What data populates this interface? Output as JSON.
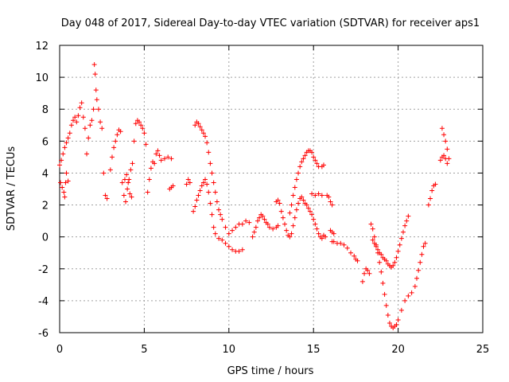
{
  "chart_data": {
    "type": "scatter",
    "title": "Day 048 of 2017, Sidereal Day-to-day VTEC variation (SDTVAR) for receiver aps1",
    "xlabel": "GPS time / hours",
    "ylabel": "SDTVAR / TECUs",
    "xlim": [
      0,
      25
    ],
    "ylim": [
      -6,
      12
    ],
    "xticks": [
      "0",
      "5",
      "10",
      "15",
      "20",
      "25"
    ],
    "yticks": [
      "-6",
      "-4",
      "-2",
      "0",
      "2",
      "4",
      "6",
      "8",
      "10",
      "12"
    ],
    "grid": true,
    "marker": "+",
    "color": "#ff0000",
    "series": [
      {
        "name": "aps1",
        "points": [
          [
            0.0,
            4.5
          ],
          [
            0.1,
            4.8
          ],
          [
            0.2,
            5.2
          ],
          [
            0.3,
            5.6
          ],
          [
            0.4,
            5.9
          ],
          [
            0.5,
            6.2
          ],
          [
            0.6,
            6.5
          ],
          [
            0.7,
            7.0
          ],
          [
            0.8,
            7.3
          ],
          [
            0.9,
            7.5
          ],
          [
            1.0,
            7.2
          ],
          [
            1.1,
            7.6
          ],
          [
            1.2,
            8.1
          ],
          [
            1.3,
            8.4
          ],
          [
            1.4,
            7.5
          ],
          [
            1.5,
            6.8
          ],
          [
            1.6,
            5.2
          ],
          [
            1.7,
            6.2
          ],
          [
            1.8,
            7.0
          ],
          [
            1.9,
            7.3
          ],
          [
            2.0,
            8.0
          ],
          [
            2.05,
            10.8
          ],
          [
            2.1,
            10.2
          ],
          [
            2.15,
            9.2
          ],
          [
            2.2,
            8.6
          ],
          [
            2.3,
            8.0
          ],
          [
            2.4,
            7.2
          ],
          [
            2.5,
            6.8
          ],
          [
            2.6,
            4.0
          ],
          [
            2.7,
            2.6
          ],
          [
            2.8,
            2.4
          ],
          [
            0.05,
            3.4
          ],
          [
            0.15,
            3.1
          ],
          [
            0.25,
            2.8
          ],
          [
            0.3,
            2.5
          ],
          [
            0.35,
            3.4
          ],
          [
            0.4,
            4.0
          ],
          [
            0.5,
            3.5
          ],
          [
            3.0,
            4.2
          ],
          [
            3.1,
            5.0
          ],
          [
            3.2,
            5.6
          ],
          [
            3.3,
            6.0
          ],
          [
            3.4,
            6.4
          ],
          [
            3.5,
            6.7
          ],
          [
            3.6,
            6.6
          ],
          [
            3.7,
            3.4
          ],
          [
            3.8,
            2.6
          ],
          [
            3.9,
            2.2
          ],
          [
            4.0,
            3.0
          ],
          [
            4.1,
            3.6
          ],
          [
            4.2,
            4.2
          ],
          [
            4.3,
            4.6
          ],
          [
            3.85,
            3.6
          ],
          [
            3.95,
            3.9
          ],
          [
            4.05,
            3.4
          ],
          [
            4.15,
            2.7
          ],
          [
            4.25,
            2.5
          ],
          [
            4.4,
            6.0
          ],
          [
            4.5,
            7.1
          ],
          [
            4.6,
            7.3
          ],
          [
            4.7,
            7.2
          ],
          [
            4.8,
            7.0
          ],
          [
            4.9,
            6.8
          ],
          [
            5.0,
            6.5
          ],
          [
            5.1,
            5.8
          ],
          [
            5.2,
            2.8
          ],
          [
            5.3,
            3.6
          ],
          [
            5.4,
            4.3
          ],
          [
            5.5,
            4.7
          ],
          [
            5.6,
            4.6
          ],
          [
            5.7,
            5.2
          ],
          [
            5.8,
            5.4
          ],
          [
            5.9,
            5.1
          ],
          [
            6.0,
            4.8
          ],
          [
            6.2,
            4.9
          ],
          [
            6.4,
            5.0
          ],
          [
            6.6,
            4.9
          ],
          [
            6.5,
            3.0
          ],
          [
            6.6,
            3.1
          ],
          [
            6.7,
            3.2
          ],
          [
            7.5,
            3.3
          ],
          [
            7.6,
            3.6
          ],
          [
            7.7,
            3.4
          ],
          [
            7.9,
            1.6
          ],
          [
            8.0,
            1.9
          ],
          [
            8.1,
            2.3
          ],
          [
            8.2,
            2.6
          ],
          [
            8.3,
            2.9
          ],
          [
            8.4,
            3.2
          ],
          [
            8.5,
            3.4
          ],
          [
            8.6,
            3.6
          ],
          [
            8.7,
            3.3
          ],
          [
            8.8,
            2.8
          ],
          [
            8.9,
            2.1
          ],
          [
            9.0,
            1.4
          ],
          [
            9.1,
            0.6
          ],
          [
            9.2,
            0.2
          ],
          [
            9.4,
            -0.1
          ],
          [
            9.6,
            -0.2
          ],
          [
            9.8,
            -0.4
          ],
          [
            10.0,
            -0.6
          ],
          [
            10.2,
            -0.8
          ],
          [
            10.4,
            -0.9
          ],
          [
            10.6,
            -0.9
          ],
          [
            10.8,
            -0.8
          ],
          [
            8.0,
            7.0
          ],
          [
            8.1,
            7.2
          ],
          [
            8.2,
            7.1
          ],
          [
            8.3,
            6.9
          ],
          [
            8.4,
            6.7
          ],
          [
            8.5,
            6.5
          ],
          [
            8.6,
            6.3
          ],
          [
            8.7,
            5.9
          ],
          [
            8.8,
            5.3
          ],
          [
            8.9,
            4.6
          ],
          [
            9.0,
            4.0
          ],
          [
            9.1,
            3.4
          ],
          [
            9.2,
            2.8
          ],
          [
            9.3,
            2.2
          ],
          [
            9.4,
            1.7
          ],
          [
            9.5,
            1.4
          ],
          [
            9.6,
            1.1
          ],
          [
            9.8,
            0.6
          ],
          [
            10.0,
            0.2
          ],
          [
            10.2,
            0.4
          ],
          [
            10.4,
            0.6
          ],
          [
            10.6,
            0.8
          ],
          [
            10.8,
            0.8
          ],
          [
            11.0,
            1.0
          ],
          [
            11.2,
            0.9
          ],
          [
            11.4,
            0.0
          ],
          [
            11.5,
            0.3
          ],
          [
            11.6,
            0.6
          ],
          [
            11.7,
            1.0
          ],
          [
            11.8,
            1.2
          ],
          [
            11.9,
            1.4
          ],
          [
            12.0,
            1.3
          ],
          [
            12.1,
            1.1
          ],
          [
            12.2,
            0.9
          ],
          [
            12.3,
            0.8
          ],
          [
            12.4,
            0.6
          ],
          [
            12.6,
            0.5
          ],
          [
            12.8,
            0.6
          ],
          [
            12.9,
            0.7
          ],
          [
            12.8,
            2.2
          ],
          [
            12.9,
            2.3
          ],
          [
            13.0,
            2.1
          ],
          [
            13.1,
            1.6
          ],
          [
            13.2,
            1.2
          ],
          [
            13.3,
            0.8
          ],
          [
            13.4,
            0.4
          ],
          [
            13.5,
            0.1
          ],
          [
            13.6,
            0.0
          ],
          [
            13.7,
            0.2
          ],
          [
            13.8,
            0.7
          ],
          [
            13.9,
            1.2
          ],
          [
            14.0,
            1.7
          ],
          [
            14.1,
            2.1
          ],
          [
            14.2,
            2.4
          ],
          [
            14.3,
            2.5
          ],
          [
            14.4,
            2.3
          ],
          [
            14.5,
            2.1
          ],
          [
            14.6,
            2.0
          ],
          [
            14.7,
            1.8
          ],
          [
            14.8,
            1.6
          ],
          [
            14.9,
            1.4
          ],
          [
            15.0,
            1.1
          ],
          [
            15.1,
            0.8
          ],
          [
            15.2,
            0.5
          ],
          [
            15.3,
            0.2
          ],
          [
            15.4,
            0.0
          ],
          [
            15.5,
            -0.1
          ],
          [
            15.6,
            0.1
          ],
          [
            15.7,
            0.0
          ],
          [
            13.6,
            1.5
          ],
          [
            13.7,
            2.0
          ],
          [
            13.8,
            2.6
          ],
          [
            13.9,
            3.1
          ],
          [
            14.0,
            3.6
          ],
          [
            14.1,
            4.0
          ],
          [
            14.2,
            4.4
          ],
          [
            14.3,
            4.7
          ],
          [
            14.4,
            4.9
          ],
          [
            14.5,
            5.1
          ],
          [
            14.6,
            5.3
          ],
          [
            14.7,
            5.4
          ],
          [
            14.8,
            5.4
          ],
          [
            14.9,
            5.3
          ],
          [
            15.0,
            5.0
          ],
          [
            15.1,
            4.8
          ],
          [
            15.2,
            4.6
          ],
          [
            15.3,
            4.4
          ],
          [
            15.5,
            4.4
          ],
          [
            15.6,
            4.5
          ],
          [
            14.9,
            2.7
          ],
          [
            15.1,
            2.6
          ],
          [
            15.3,
            2.7
          ],
          [
            15.5,
            2.6
          ],
          [
            15.8,
            2.6
          ],
          [
            15.9,
            2.5
          ],
          [
            16.0,
            2.2
          ],
          [
            16.1,
            2.0
          ],
          [
            16.0,
            0.4
          ],
          [
            16.1,
            0.3
          ],
          [
            16.2,
            0.2
          ],
          [
            16.1,
            -0.3
          ],
          [
            16.2,
            -0.3
          ],
          [
            16.4,
            -0.4
          ],
          [
            16.6,
            -0.4
          ],
          [
            16.8,
            -0.5
          ],
          [
            17.0,
            -0.7
          ],
          [
            17.2,
            -1.0
          ],
          [
            17.4,
            -1.2
          ],
          [
            17.5,
            -1.4
          ],
          [
            17.6,
            -1.5
          ],
          [
            17.9,
            -2.8
          ],
          [
            18.0,
            -2.3
          ],
          [
            18.1,
            -2.0
          ],
          [
            18.2,
            -2.1
          ],
          [
            18.3,
            -2.3
          ],
          [
            18.4,
            0.8
          ],
          [
            18.5,
            0.5
          ],
          [
            18.6,
            0.0
          ],
          [
            18.7,
            -0.5
          ],
          [
            18.8,
            -1.0
          ],
          [
            18.9,
            -1.6
          ],
          [
            19.0,
            -2.2
          ],
          [
            19.1,
            -2.9
          ],
          [
            19.2,
            -3.6
          ],
          [
            19.3,
            -4.3
          ],
          [
            19.4,
            -4.9
          ],
          [
            19.5,
            -5.4
          ],
          [
            19.6,
            -5.6
          ],
          [
            19.7,
            -5.7
          ],
          [
            19.8,
            -5.6
          ],
          [
            19.9,
            -5.5
          ],
          [
            20.0,
            -5.2
          ],
          [
            20.2,
            -4.6
          ],
          [
            20.4,
            -4.0
          ],
          [
            20.6,
            -3.7
          ],
          [
            20.8,
            -3.5
          ],
          [
            21.0,
            -3.1
          ],
          [
            21.1,
            -2.6
          ],
          [
            21.2,
            -2.1
          ],
          [
            21.3,
            -1.6
          ],
          [
            21.4,
            -1.1
          ],
          [
            21.5,
            -0.6
          ],
          [
            21.6,
            -0.4
          ],
          [
            18.5,
            -0.2
          ],
          [
            18.6,
            -0.4
          ],
          [
            18.7,
            -0.6
          ],
          [
            18.8,
            -0.8
          ],
          [
            18.9,
            -1.0
          ],
          [
            19.0,
            -1.1
          ],
          [
            19.1,
            -1.3
          ],
          [
            19.2,
            -1.4
          ],
          [
            19.3,
            -1.5
          ],
          [
            19.4,
            -1.7
          ],
          [
            19.5,
            -1.8
          ],
          [
            19.6,
            -1.9
          ],
          [
            19.7,
            -1.8
          ],
          [
            19.8,
            -1.6
          ],
          [
            19.9,
            -1.3
          ],
          [
            20.0,
            -0.9
          ],
          [
            20.1,
            -0.5
          ],
          [
            20.2,
            -0.1
          ],
          [
            20.3,
            0.3
          ],
          [
            20.4,
            0.7
          ],
          [
            20.5,
            1.0
          ],
          [
            20.6,
            1.3
          ],
          [
            21.8,
            2.0
          ],
          [
            21.9,
            2.4
          ],
          [
            22.0,
            2.9
          ],
          [
            22.1,
            3.2
          ],
          [
            22.2,
            3.3
          ],
          [
            22.5,
            4.8
          ],
          [
            22.6,
            5.0
          ],
          [
            22.7,
            5.1
          ],
          [
            22.8,
            4.9
          ],
          [
            22.9,
            4.6
          ],
          [
            22.6,
            6.8
          ],
          [
            22.7,
            6.4
          ],
          [
            22.8,
            6.0
          ],
          [
            22.9,
            5.5
          ],
          [
            23.0,
            4.9
          ]
        ]
      }
    ]
  }
}
